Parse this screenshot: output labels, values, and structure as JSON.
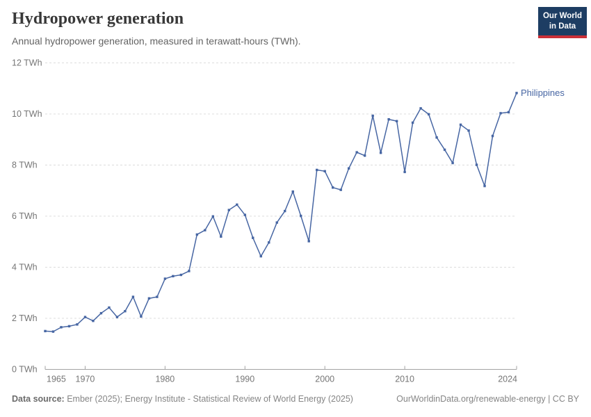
{
  "header": {
    "title": "Hydropower generation",
    "subtitle": "Annual hydropower generation, measured in terawatt-hours (TWh).",
    "logo": {
      "line1": "Our World",
      "line2": "in Data"
    }
  },
  "colors": {
    "series_line": "#4766a3",
    "logo_background": "#1d3d63",
    "logo_red_bar": "#cb3037",
    "gridline": "#dcdcdc",
    "axis": "#a3a3a3",
    "tick_label": "#757575",
    "title_text": "#383838",
    "subtitle_text": "#636363",
    "footer_text": "#858585"
  },
  "chart_data": {
    "type": "line",
    "title": "Hydropower generation",
    "subtitle": "Annual hydropower generation, measured in terawatt-hours (TWh).",
    "unit": "TWh",
    "xlabel": "",
    "ylabel": "",
    "grid": "horizontal-dashed",
    "legend_position": "end-of-line-label",
    "xlim": [
      1965,
      2024
    ],
    "ylim": [
      0,
      12
    ],
    "yticks": [
      0,
      2,
      4,
      6,
      8,
      10,
      12
    ],
    "ytick_labels": [
      "0 TWh",
      "2 TWh",
      "4 TWh",
      "6 TWh",
      "8 TWh",
      "10 TWh",
      "12 TWh"
    ],
    "xticks": [
      1965,
      1970,
      1980,
      1990,
      2000,
      2010,
      2024
    ],
    "xtick_labels": [
      "1965",
      "1970",
      "1980",
      "1990",
      "2000",
      "2010",
      "2024"
    ],
    "x": [
      1965,
      1966,
      1967,
      1968,
      1969,
      1970,
      1971,
      1972,
      1973,
      1974,
      1975,
      1976,
      1977,
      1978,
      1979,
      1980,
      1981,
      1982,
      1983,
      1984,
      1985,
      1986,
      1987,
      1988,
      1989,
      1990,
      1991,
      1992,
      1993,
      1994,
      1995,
      1996,
      1997,
      1998,
      1999,
      2000,
      2001,
      2002,
      2003,
      2004,
      2005,
      2006,
      2007,
      2008,
      2009,
      2010,
      2011,
      2012,
      2013,
      2014,
      2015,
      2016,
      2017,
      2018,
      2019,
      2020,
      2021,
      2022,
      2023,
      2024
    ],
    "series": [
      {
        "name": "Philippines",
        "color": "#4766a3",
        "values": [
          1.5,
          1.48,
          1.65,
          1.69,
          1.76,
          2.05,
          1.9,
          2.2,
          2.42,
          2.05,
          2.28,
          2.84,
          2.07,
          2.78,
          2.84,
          3.55,
          3.65,
          3.7,
          3.85,
          5.28,
          5.45,
          5.99,
          5.2,
          6.24,
          6.45,
          6.05,
          5.15,
          4.43,
          4.97,
          5.75,
          6.2,
          6.96,
          6.01,
          5.02,
          7.81,
          7.76,
          7.12,
          7.03,
          7.87,
          8.5,
          8.37,
          9.93,
          8.48,
          9.79,
          9.72,
          7.73,
          9.66,
          10.22,
          9.99,
          9.08,
          8.6,
          8.08,
          9.58,
          9.35,
          8.01,
          7.18,
          9.14,
          10.03,
          10.07,
          10.82
        ]
      }
    ]
  },
  "footer": {
    "source_label": "Data source:",
    "source_text": " Ember (2025); Energy Institute - Statistical Review of World Energy (2025)",
    "right_text": "OurWorldinData.org/renewable-energy | CC BY"
  }
}
